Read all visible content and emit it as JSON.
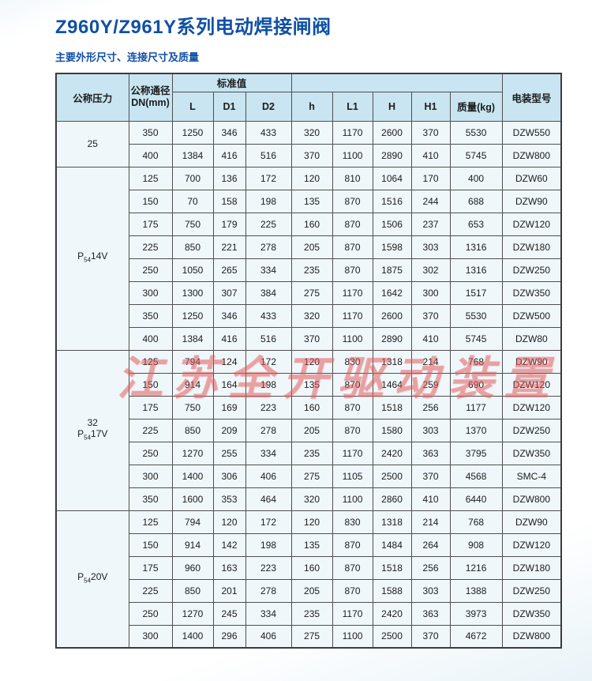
{
  "page": {
    "title": "Z960Y/Z961Y系列电动焊接闸阀",
    "subtitle": "主要外形尺寸、连接尺寸及质量",
    "title_color": "#1050a5",
    "watermark": "江苏全开驱动装置",
    "watermark_color": "#e15c5c",
    "header_bg_color": "#c8e5f1",
    "cell_bg_color": "#f0f7fb"
  },
  "table": {
    "header": {
      "col_pressure": "公称压力",
      "col_dn_line1": "公称通径",
      "col_dn_line2": "DN(mm)",
      "standard_group": "标准值",
      "sub_cols": [
        "L",
        "D1",
        "D2",
        "h",
        "L1",
        "H",
        "H1",
        "质量(kg)"
      ],
      "col_model": "电装型号"
    },
    "groups": [
      {
        "label_lines": [
          [
            {
              "t": "25"
            }
          ]
        ],
        "rows": [
          [
            "350",
            "1250",
            "346",
            "433",
            "320",
            "1170",
            "2600",
            "370",
            "5530",
            "DZW550"
          ],
          [
            "400",
            "1384",
            "416",
            "516",
            "370",
            "1100",
            "2890",
            "410",
            "5745",
            "DZW800"
          ]
        ]
      },
      {
        "label_lines": [
          [
            {
              "t": "P"
            },
            {
              "t": "54",
              "sub": true
            },
            {
              "t": "14V"
            }
          ]
        ],
        "rows": [
          [
            "125",
            "700",
            "136",
            "172",
            "120",
            "810",
            "1064",
            "170",
            "400",
            "DZW60"
          ],
          [
            "150",
            "70",
            "158",
            "198",
            "135",
            "870",
            "1516",
            "244",
            "688",
            "DZW90"
          ],
          [
            "175",
            "750",
            "179",
            "225",
            "160",
            "870",
            "1506",
            "237",
            "653",
            "DZW120"
          ],
          [
            "225",
            "850",
            "221",
            "278",
            "205",
            "870",
            "1598",
            "303",
            "1316",
            "DZW180"
          ],
          [
            "250",
            "1050",
            "265",
            "334",
            "235",
            "870",
            "1875",
            "302",
            "1316",
            "DZW250"
          ],
          [
            "300",
            "1300",
            "307",
            "384",
            "275",
            "1170",
            "1642",
            "300",
            "1517",
            "DZW350"
          ],
          [
            "350",
            "1250",
            "346",
            "433",
            "320",
            "1170",
            "2600",
            "370",
            "5530",
            "DZW500"
          ],
          [
            "400",
            "1384",
            "416",
            "516",
            "370",
            "1100",
            "2890",
            "410",
            "5745",
            "DZW80"
          ]
        ]
      },
      {
        "label_lines": [
          [
            {
              "t": "32"
            }
          ],
          [
            {
              "t": "P"
            },
            {
              "t": "54",
              "sub": true
            },
            {
              "t": "17V"
            }
          ]
        ],
        "rows": [
          [
            "125",
            "794",
            "124",
            "172",
            "120",
            "830",
            "1318",
            "214",
            "768",
            "DZW90"
          ],
          [
            "150",
            "914",
            "164",
            "198",
            "135",
            "870",
            "1464",
            "259",
            "690",
            "DZW120"
          ],
          [
            "175",
            "750",
            "169",
            "223",
            "160",
            "870",
            "1518",
            "256",
            "1177",
            "DZW120"
          ],
          [
            "225",
            "850",
            "209",
            "278",
            "205",
            "870",
            "1580",
            "303",
            "1370",
            "DZW250"
          ],
          [
            "250",
            "1270",
            "255",
            "334",
            "235",
            "1170",
            "2420",
            "363",
            "3795",
            "DZW350"
          ],
          [
            "300",
            "1400",
            "306",
            "406",
            "275",
            "1105",
            "2500",
            "370",
            "4568",
            "SMC-4"
          ],
          [
            "350",
            "1600",
            "353",
            "464",
            "320",
            "1100",
            "2860",
            "410",
            "6440",
            "DZW800"
          ]
        ]
      },
      {
        "label_lines": [
          [
            {
              "t": "P"
            },
            {
              "t": "54",
              "sub": true
            },
            {
              "t": "20V"
            }
          ]
        ],
        "rows": [
          [
            "125",
            "794",
            "120",
            "172",
            "120",
            "830",
            "1318",
            "214",
            "768",
            "DZW90"
          ],
          [
            "150",
            "914",
            "142",
            "198",
            "135",
            "870",
            "1484",
            "264",
            "908",
            "DZW120"
          ],
          [
            "175",
            "960",
            "163",
            "223",
            "160",
            "870",
            "1518",
            "256",
            "1216",
            "DZW180"
          ],
          [
            "225",
            "850",
            "201",
            "278",
            "205",
            "870",
            "1588",
            "303",
            "1388",
            "DZW250"
          ],
          [
            "250",
            "1270",
            "245",
            "334",
            "235",
            "1170",
            "2420",
            "363",
            "3973",
            "DZW350"
          ],
          [
            "300",
            "1400",
            "296",
            "406",
            "275",
            "1100",
            "2500",
            "370",
            "4672",
            "DZW800"
          ]
        ]
      }
    ]
  }
}
